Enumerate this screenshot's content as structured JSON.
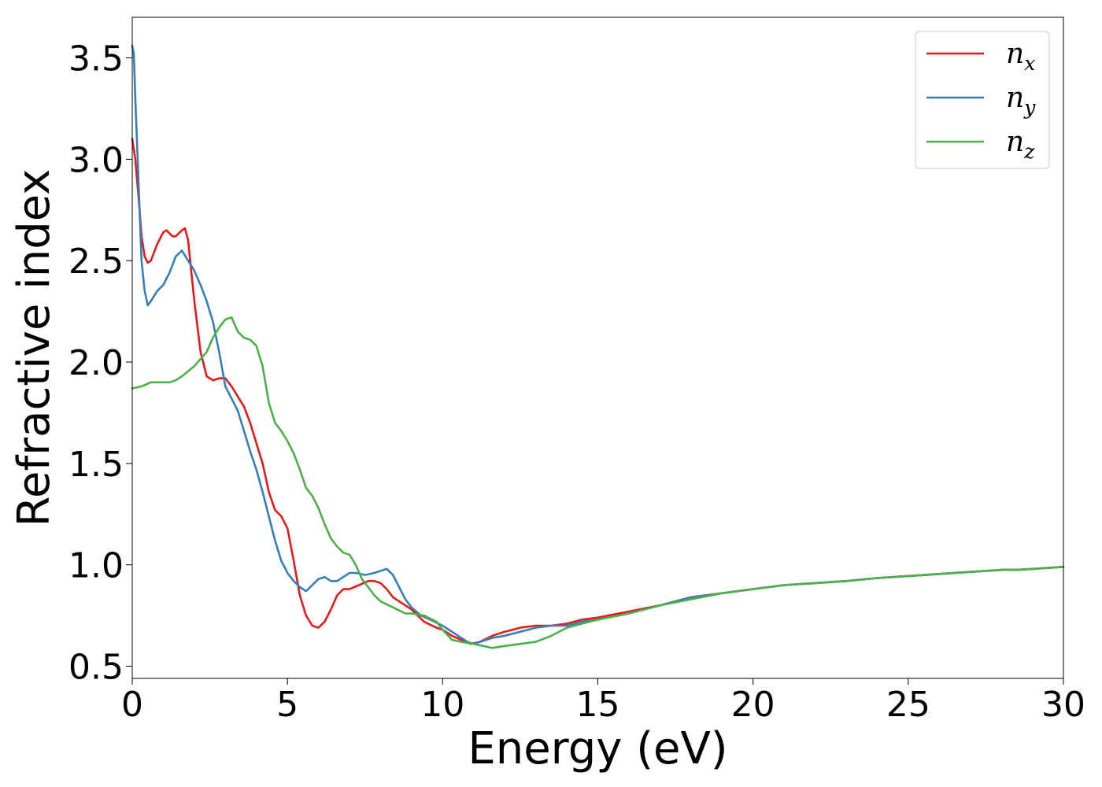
{
  "chart_data": {
    "type": "line",
    "title": "",
    "xlabel": "Energy (eV)",
    "ylabel": "Refractive index",
    "xlim": [
      0,
      30
    ],
    "ylim": [
      0.44,
      3.7
    ],
    "xticks": [
      0,
      5,
      10,
      15,
      20,
      25,
      30
    ],
    "xtick_labels": [
      "0",
      "5",
      "10",
      "15",
      "20",
      "25",
      "30"
    ],
    "yticks": [
      0.5,
      1.0,
      1.5,
      2.0,
      2.5,
      3.0,
      3.5
    ],
    "ytick_labels": [
      "0.5",
      "1.0",
      "1.5",
      "2.0",
      "2.5",
      "3.0",
      "3.5"
    ],
    "grid": false,
    "legend_position": "top-right",
    "series": [
      {
        "name": "n_x",
        "label_base": "n",
        "label_sub": "x",
        "color": "#e41a1c",
        "x": [
          0,
          0.1,
          0.2,
          0.3,
          0.4,
          0.5,
          0.6,
          0.8,
          1.0,
          1.1,
          1.3,
          1.4,
          1.6,
          1.7,
          1.8,
          1.9,
          2.0,
          2.2,
          2.4,
          2.6,
          2.8,
          3.0,
          3.2,
          3.4,
          3.6,
          3.8,
          4.0,
          4.2,
          4.4,
          4.6,
          4.8,
          5.0,
          5.2,
          5.4,
          5.6,
          5.8,
          6.0,
          6.2,
          6.4,
          6.6,
          6.8,
          7.0,
          7.3,
          7.6,
          7.8,
          8.0,
          8.2,
          8.4,
          8.6,
          9.0,
          9.4,
          9.8,
          10.0,
          10.3,
          10.6,
          10.9,
          11.2,
          11.6,
          12.0,
          12.5,
          13.0,
          13.5,
          14.0,
          14.5,
          15.0,
          16,
          17,
          18,
          19,
          20,
          21,
          22,
          23,
          24,
          25,
          26,
          27,
          28,
          28.5,
          29,
          29.5,
          30
        ],
        "y": [
          3.1,
          3.0,
          2.82,
          2.62,
          2.52,
          2.49,
          2.5,
          2.58,
          2.64,
          2.65,
          2.62,
          2.62,
          2.65,
          2.66,
          2.6,
          2.45,
          2.3,
          2.05,
          1.93,
          1.91,
          1.92,
          1.92,
          1.88,
          1.83,
          1.78,
          1.7,
          1.6,
          1.5,
          1.36,
          1.27,
          1.24,
          1.18,
          1.02,
          0.85,
          0.75,
          0.7,
          0.69,
          0.72,
          0.78,
          0.85,
          0.88,
          0.88,
          0.9,
          0.92,
          0.92,
          0.91,
          0.88,
          0.84,
          0.82,
          0.78,
          0.72,
          0.69,
          0.68,
          0.65,
          0.63,
          0.61,
          0.62,
          0.65,
          0.67,
          0.69,
          0.7,
          0.7,
          0.71,
          0.73,
          0.74,
          0.77,
          0.8,
          0.84,
          0.86,
          0.88,
          0.9,
          0.91,
          0.92,
          0.935,
          0.945,
          0.955,
          0.965,
          0.975,
          0.975,
          0.98,
          0.985,
          0.99
        ]
      },
      {
        "name": "n_y",
        "label_base": "n",
        "label_sub": "y",
        "color": "#377eb8",
        "x": [
          0,
          0.05,
          0.1,
          0.2,
          0.3,
          0.4,
          0.5,
          0.6,
          0.8,
          1.0,
          1.2,
          1.4,
          1.6,
          1.8,
          2.0,
          2.2,
          2.4,
          2.6,
          2.8,
          3.0,
          3.2,
          3.4,
          3.6,
          3.8,
          4.0,
          4.2,
          4.4,
          4.6,
          4.8,
          5.0,
          5.2,
          5.4,
          5.6,
          5.8,
          6.0,
          6.2,
          6.4,
          6.6,
          6.8,
          7.0,
          7.2,
          7.5,
          7.8,
          8.0,
          8.2,
          8.4,
          8.6,
          8.8,
          9.0,
          9.3,
          9.6,
          10.0,
          10.4,
          10.8,
          11.0,
          11.2,
          11.6,
          12.0,
          12.5,
          13.0,
          13.5,
          14.0,
          14.5,
          15.0,
          16,
          17,
          18,
          19,
          20,
          21,
          22,
          23,
          24,
          25,
          26,
          27,
          28,
          28.5,
          29,
          29.5,
          30
        ],
        "y": [
          3.56,
          3.52,
          3.3,
          2.9,
          2.5,
          2.35,
          2.28,
          2.3,
          2.35,
          2.38,
          2.44,
          2.52,
          2.55,
          2.5,
          2.45,
          2.38,
          2.3,
          2.2,
          2.05,
          1.88,
          1.82,
          1.76,
          1.66,
          1.56,
          1.47,
          1.36,
          1.24,
          1.12,
          1.02,
          0.96,
          0.92,
          0.89,
          0.87,
          0.9,
          0.93,
          0.94,
          0.92,
          0.92,
          0.94,
          0.96,
          0.96,
          0.95,
          0.96,
          0.97,
          0.98,
          0.95,
          0.89,
          0.83,
          0.79,
          0.75,
          0.73,
          0.7,
          0.66,
          0.62,
          0.61,
          0.62,
          0.64,
          0.65,
          0.67,
          0.69,
          0.7,
          0.7,
          0.72,
          0.73,
          0.76,
          0.8,
          0.84,
          0.86,
          0.88,
          0.9,
          0.91,
          0.92,
          0.935,
          0.945,
          0.955,
          0.965,
          0.975,
          0.975,
          0.98,
          0.985,
          0.99
        ]
      },
      {
        "name": "n_z",
        "label_base": "n",
        "label_sub": "z",
        "color": "#4daf4a",
        "x": [
          0,
          0.3,
          0.6,
          0.8,
          1.0,
          1.2,
          1.4,
          1.6,
          2.0,
          2.4,
          2.6,
          2.8,
          3.0,
          3.2,
          3.4,
          3.6,
          3.8,
          4.0,
          4.2,
          4.4,
          4.6,
          4.8,
          5.0,
          5.2,
          5.4,
          5.6,
          5.8,
          6.0,
          6.2,
          6.4,
          6.6,
          6.8,
          7.0,
          7.2,
          7.4,
          7.6,
          7.8,
          8.0,
          8.4,
          8.8,
          9.0,
          9.4,
          9.8,
          10.0,
          10.3,
          10.6,
          11.0,
          11.3,
          11.6,
          12.0,
          12.5,
          13.0,
          13.5,
          14.0,
          14.5,
          15.0,
          16,
          17,
          18,
          19,
          20,
          21,
          22,
          23,
          24,
          25,
          26,
          27,
          28,
          28.5,
          29,
          29.5,
          30
        ],
        "y": [
          1.87,
          1.88,
          1.9,
          1.9,
          1.9,
          1.9,
          1.91,
          1.93,
          1.98,
          2.05,
          2.12,
          2.17,
          2.21,
          2.22,
          2.15,
          2.12,
          2.11,
          2.08,
          1.98,
          1.8,
          1.7,
          1.66,
          1.61,
          1.55,
          1.47,
          1.38,
          1.34,
          1.28,
          1.2,
          1.13,
          1.09,
          1.06,
          1.05,
          1.0,
          0.93,
          0.89,
          0.85,
          0.82,
          0.79,
          0.76,
          0.76,
          0.75,
          0.72,
          0.68,
          0.63,
          0.62,
          0.61,
          0.6,
          0.59,
          0.6,
          0.61,
          0.62,
          0.65,
          0.69,
          0.71,
          0.73,
          0.76,
          0.8,
          0.83,
          0.86,
          0.88,
          0.9,
          0.91,
          0.92,
          0.935,
          0.945,
          0.955,
          0.965,
          0.975,
          0.975,
          0.98,
          0.985,
          0.99
        ]
      }
    ]
  }
}
